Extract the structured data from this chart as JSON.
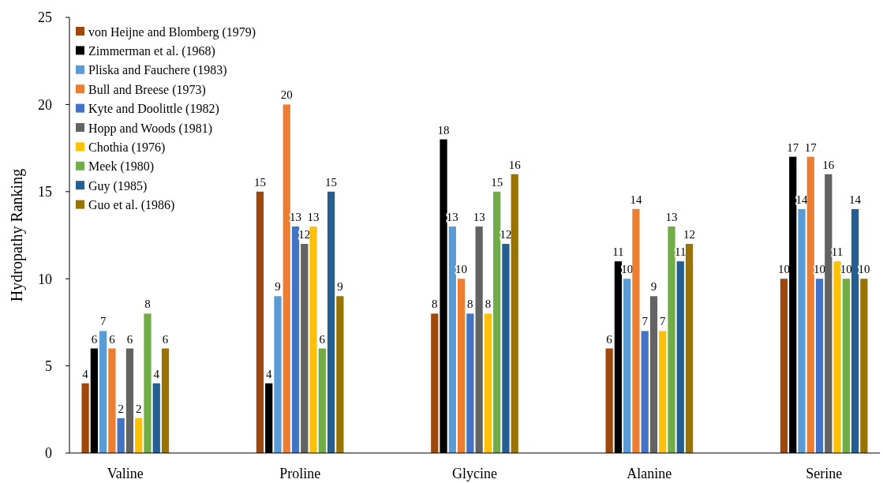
{
  "chart_data": {
    "type": "bar",
    "ylabel": "Hydropathy Ranking",
    "categories": [
      "Valine",
      "Proline",
      "Glycine",
      "Alanine",
      "Serine"
    ],
    "series": [
      {
        "name": "von Heijne and Blomberg (1979)",
        "color": "#9e480e",
        "values": [
          4,
          15,
          8,
          6,
          10
        ]
      },
      {
        "name": "Zimmerman et al. (1968)",
        "color": "#000000",
        "values": [
          6,
          4,
          18,
          11,
          17
        ]
      },
      {
        "name": "Pliska and Fauchere (1983)",
        "color": "#5b9bd5",
        "values": [
          7,
          9,
          13,
          10,
          14
        ]
      },
      {
        "name": "Bull and Breese (1973)",
        "color": "#ed7d31",
        "values": [
          6,
          20,
          10,
          14,
          17
        ]
      },
      {
        "name": "Kyte and Doolittle (1982)",
        "color": "#4472c4",
        "values": [
          2,
          13,
          8,
          7,
          10
        ]
      },
      {
        "name": "Hopp and Woods (1981)",
        "color": "#636363",
        "values": [
          6,
          12,
          13,
          9,
          16
        ]
      },
      {
        "name": "Chothia (1976)",
        "color": "#ffc000",
        "values": [
          2,
          13,
          8,
          7,
          11
        ]
      },
      {
        "name": "Meek (1980)",
        "color": "#70ad47",
        "values": [
          8,
          6,
          15,
          13,
          10
        ]
      },
      {
        "name": "Guy (1985)",
        "color": "#255e91",
        "values": [
          4,
          15,
          12,
          11,
          14
        ]
      },
      {
        "name": "Guo et al. (1986)",
        "color": "#997300",
        "values": [
          6,
          9,
          16,
          12,
          10
        ]
      }
    ],
    "ylim": [
      0,
      25
    ],
    "yticks": [
      0,
      5,
      10,
      15,
      20,
      25
    ],
    "grid": false,
    "legend": "top left",
    "data_labels": true
  }
}
